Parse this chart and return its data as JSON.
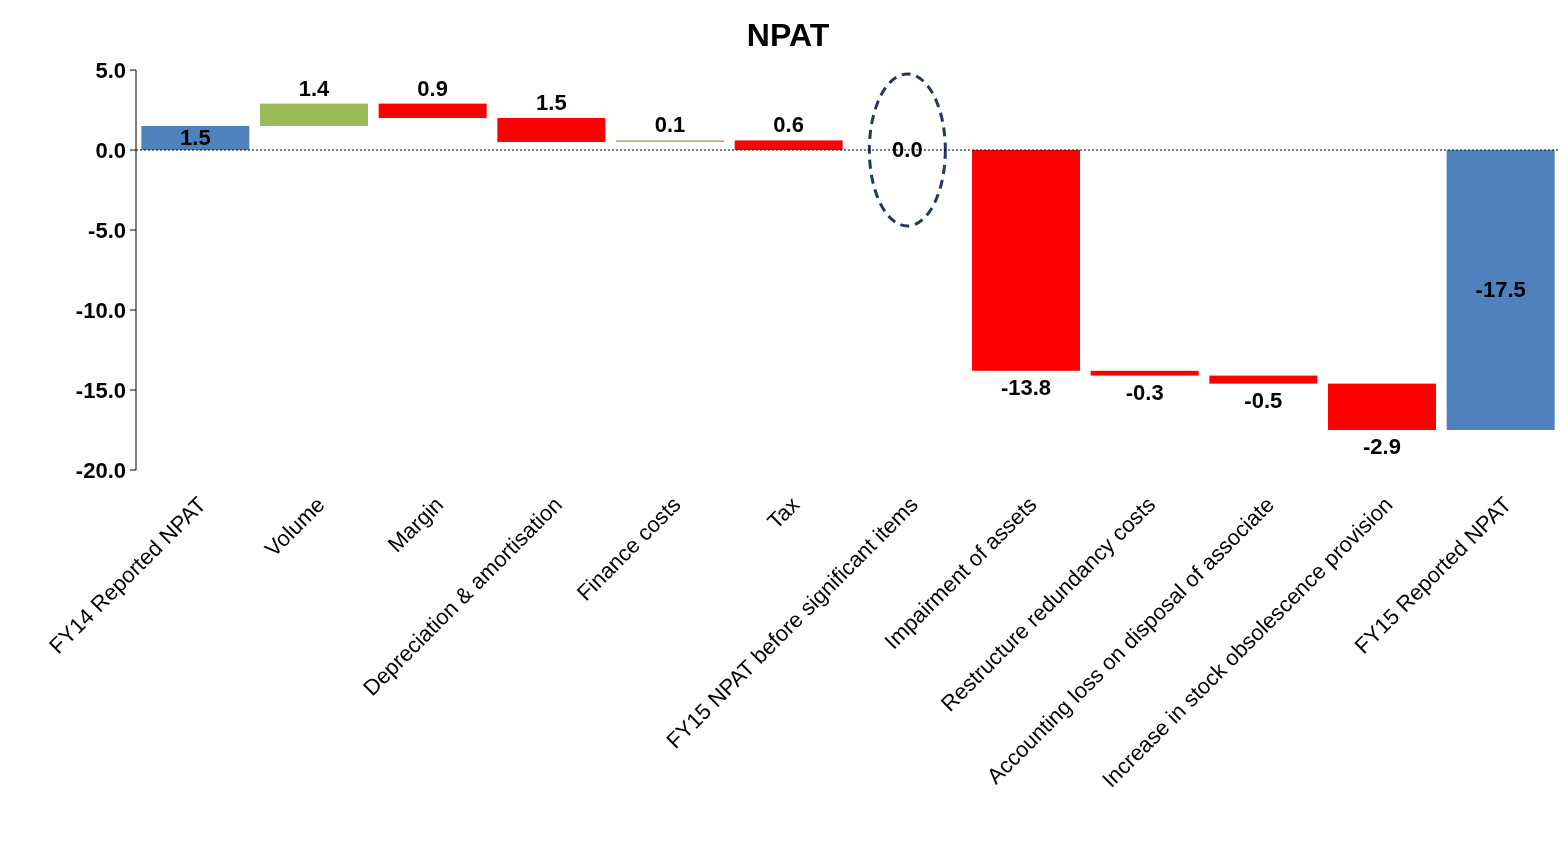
{
  "chart_data": {
    "type": "bar",
    "title": "NPAT",
    "categories": [
      "FY14 Reported NPAT",
      "Volume",
      "Margin",
      "Depreciation & amortisation",
      "Finance costs",
      "Tax",
      "FY15 NPAT before significant items",
      "Impairment of assets",
      "Restructure redundancy costs",
      "Accounting loss on disposal of associate",
      "Increase in stock obsolescence provision",
      "FY15 Reported NPAT"
    ],
    "values": [
      1.5,
      1.4,
      -0.9,
      -1.5,
      0.1,
      -0.6,
      0.0,
      -13.8,
      -0.3,
      -0.5,
      -2.9,
      -17.5
    ],
    "base": [
      0,
      1.5,
      2.9,
      2.0,
      0.5,
      0.6,
      null,
      0,
      -13.8,
      -14.1,
      -14.6,
      0
    ],
    "colors": [
      "#4f81bd",
      "#9bbb59",
      "#ff0000",
      "#ff0000",
      "#9bbb59",
      "#ff0000",
      "#ff0000",
      "#ff0000",
      "#ff0000",
      "#ff0000",
      "#ff0000",
      "#4f81bd"
    ],
    "value_labels": [
      "1.5",
      "1.4",
      "0.9",
      "1.5",
      "0.1",
      "0.6",
      "0.0",
      "-13.8",
      "-0.3",
      "-0.5",
      "-2.9",
      "-17.5"
    ],
    "ylim": [
      -20,
      5
    ],
    "yticks": [
      {
        "value": 5,
        "label": "5.0"
      },
      {
        "value": 0,
        "label": "0.0"
      },
      {
        "value": -5,
        "label": "-5.0"
      },
      {
        "value": -10,
        "label": "-10.0"
      },
      {
        "value": -15,
        "label": "-15.0"
      },
      {
        "value": -20,
        "label": "-20.0"
      }
    ],
    "ref_lines": [
      {
        "axis": "y",
        "value": 0,
        "color": "#000000",
        "line_style": "dotted"
      }
    ],
    "grid": false
  }
}
